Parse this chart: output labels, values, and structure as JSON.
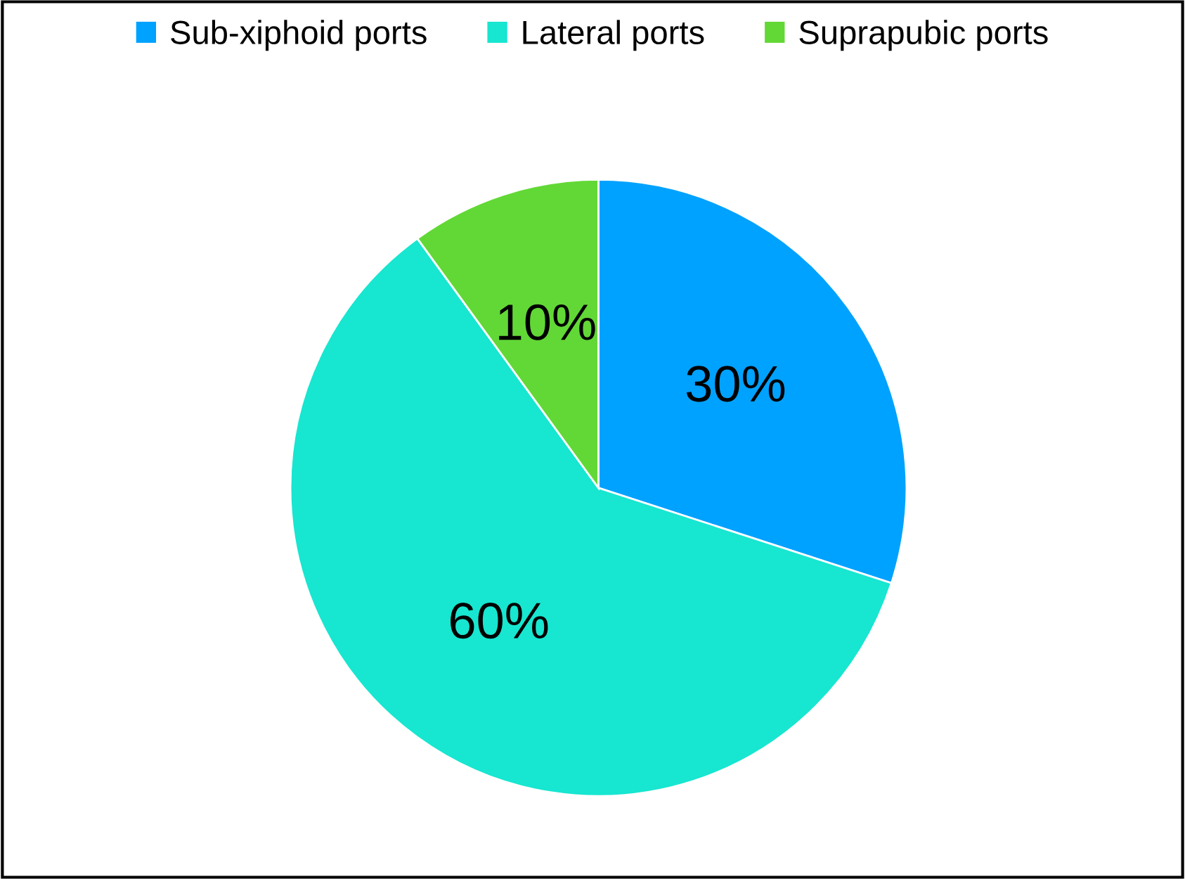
{
  "chart_data": {
    "type": "pie",
    "categories": [
      "Sub-xiphoid ports",
      "Lateral ports",
      "Suprapubic ports"
    ],
    "values": [
      30,
      60,
      10
    ],
    "colors": [
      "#00a2ff",
      "#17e6d0",
      "#62d836"
    ],
    "value_labels": [
      "30%",
      "60%",
      "10%"
    ],
    "legend": "top"
  }
}
